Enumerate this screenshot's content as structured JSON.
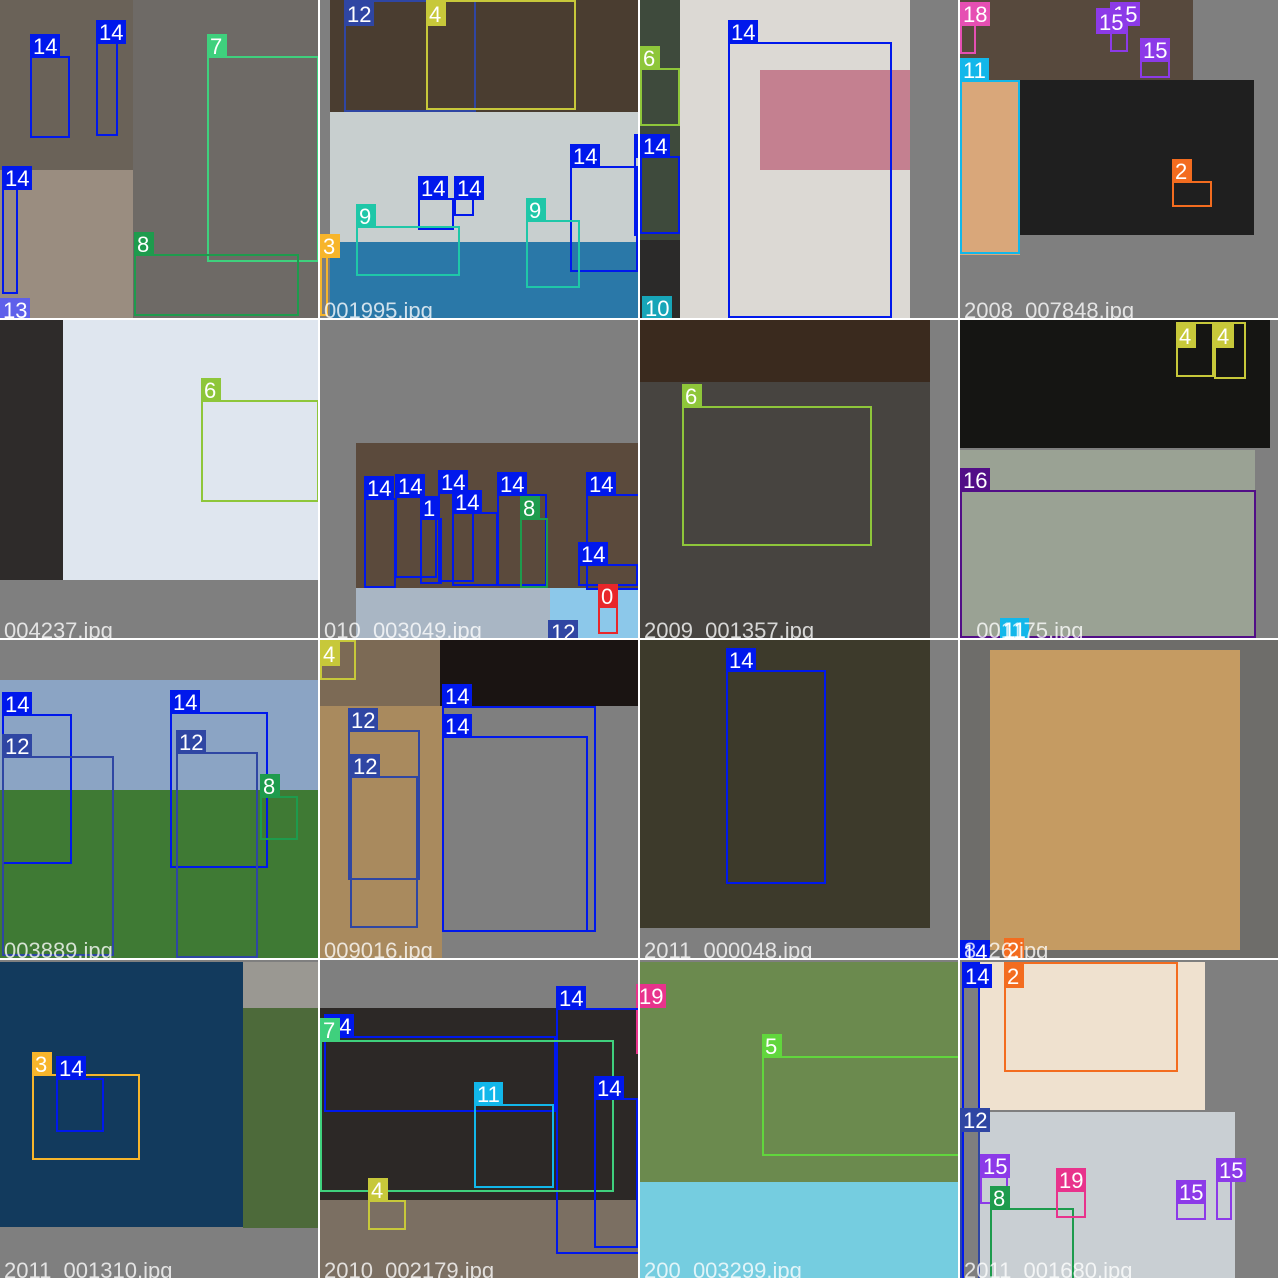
{
  "palette": {
    "0": "#e8272a",
    "2": "#f36c1f",
    "3": "#f7b52b",
    "4": "#c7c83a",
    "5": "#61d63d",
    "6": "#8ec63a",
    "7": "#3fd07d",
    "8": "#1e9b4d",
    "9": "#1fc7a8",
    "10": "#17a5b8",
    "11": "#12b7ea",
    "12": "#2f46a3",
    "13": "#5e60ea",
    "14": "#0018ec",
    "15": "#8c3ae8",
    "16": "#520e87",
    "17": "#c23fe8",
    "18": "#e64fb3",
    "19": "#e8338c"
  },
  "tiles": [
    {
      "filename": "",
      "labels": [
        "14",
        "14",
        "14",
        "7",
        "8",
        "13"
      ],
      "photos": [
        {
          "color": "#6a6258"
        },
        {
          "color": "#6e6a66"
        },
        {
          "color": "#9a8d80"
        },
        {
          "color": "#4a4844"
        }
      ]
    },
    {
      "filename": "001995.jpg",
      "labels": [
        "12",
        "4",
        "14",
        "14",
        "14",
        "14",
        "9",
        "9",
        "3"
      ],
      "photos": [
        {
          "color": "#4a3d30"
        },
        {
          "color": "#c8cfcf"
        },
        {
          "color": "#2a78a8"
        }
      ]
    },
    {
      "filename": "",
      "labels": [
        "14",
        "6",
        "14",
        "14",
        "10"
      ],
      "photos": [
        {
          "color": "#2b2a29"
        },
        {
          "color": "#dcd9d4"
        },
        {
          "color": "#3e4a3c"
        },
        {
          "color": "#c48090"
        }
      ]
    },
    {
      "filename": "2008_007848.jpg",
      "labels": [
        "18",
        "15",
        "15",
        "15",
        "11",
        "2"
      ],
      "photos": [
        {
          "color": "#57493d"
        },
        {
          "color": "#1f1f1f"
        },
        {
          "color": "#d9a77a"
        }
      ]
    },
    {
      "filename": "004237.jpg",
      "labels": [
        "6"
      ],
      "photos": [
        {
          "color": "#9cb1c8"
        },
        {
          "color": "#dfe6ef"
        },
        {
          "color": "#2e2b2a"
        }
      ]
    },
    {
      "filename": "010_003049.jpg",
      "labels": [
        "14",
        "14",
        "14",
        "1",
        "14",
        "14",
        "8",
        "14",
        "14",
        "12",
        "0"
      ],
      "photos": [
        {
          "color": "#5b4a3c"
        },
        {
          "color": "#a9b6c4"
        },
        {
          "color": "#8cc8ea"
        }
      ]
    },
    {
      "filename": "2009_001357.jpg",
      "labels": [
        "6"
      ],
      "photos": [
        {
          "color": "#3a2a1e"
        },
        {
          "color": "#474440"
        }
      ]
    },
    {
      "filename": "_001175.jpg",
      "labels": [
        "4",
        "4",
        "16",
        "11"
      ],
      "photos": [
        {
          "color": "#151513"
        },
        {
          "color": "#9aa294"
        }
      ]
    },
    {
      "filename": "003889.jpg",
      "labels": [
        "14",
        "12",
        "14",
        "12",
        "8"
      ],
      "photos": [
        {
          "color": "#3f7a34"
        },
        {
          "color": "#8ba4c4"
        }
      ]
    },
    {
      "filename": "009016.jpg",
      "labels": [
        "4",
        "12",
        "14",
        "12",
        "14"
      ],
      "photos": [
        {
          "color": "#7c6a55"
        },
        {
          "color": "#1a1412"
        },
        {
          "color": "#a98a5e"
        }
      ]
    },
    {
      "filename": "2011_000048.jpg",
      "labels": [
        "14"
      ],
      "photos": [
        {
          "color": "#3d3a2b"
        }
      ]
    },
    {
      "filename": "8_26.jpg",
      "labels": [
        "14",
        "2"
      ],
      "photos": [
        {
          "color": "#6e6d6a"
        },
        {
          "color": "#c59b62"
        }
      ]
    },
    {
      "filename": "2011_001310.jpg",
      "labels": [
        "3",
        "14"
      ],
      "photos": [
        {
          "color": "#123a5d"
        },
        {
          "color": "#4d6a3a"
        },
        {
          "color": "#9a9892"
        }
      ]
    },
    {
      "filename": "2010_002179.jpg",
      "labels": [
        "14",
        "19",
        "14",
        "7",
        "11",
        "14",
        "4"
      ],
      "photos": [
        {
          "color": "#2c2826"
        },
        {
          "color": "#7b6f62"
        }
      ]
    },
    {
      "filename": "200_003299.jpg",
      "labels": [
        "19",
        "5"
      ],
      "photos": [
        {
          "color": "#6b8a4e"
        },
        {
          "color": "#75cde0"
        }
      ]
    },
    {
      "filename": "2011_001680.jpg",
      "labels": [
        "14",
        "2",
        "12",
        "15",
        "8",
        "19",
        "15",
        "15"
      ],
      "photos": [
        {
          "color": "#efe1cf"
        },
        {
          "color": "#c9cfd3"
        }
      ]
    }
  ]
}
